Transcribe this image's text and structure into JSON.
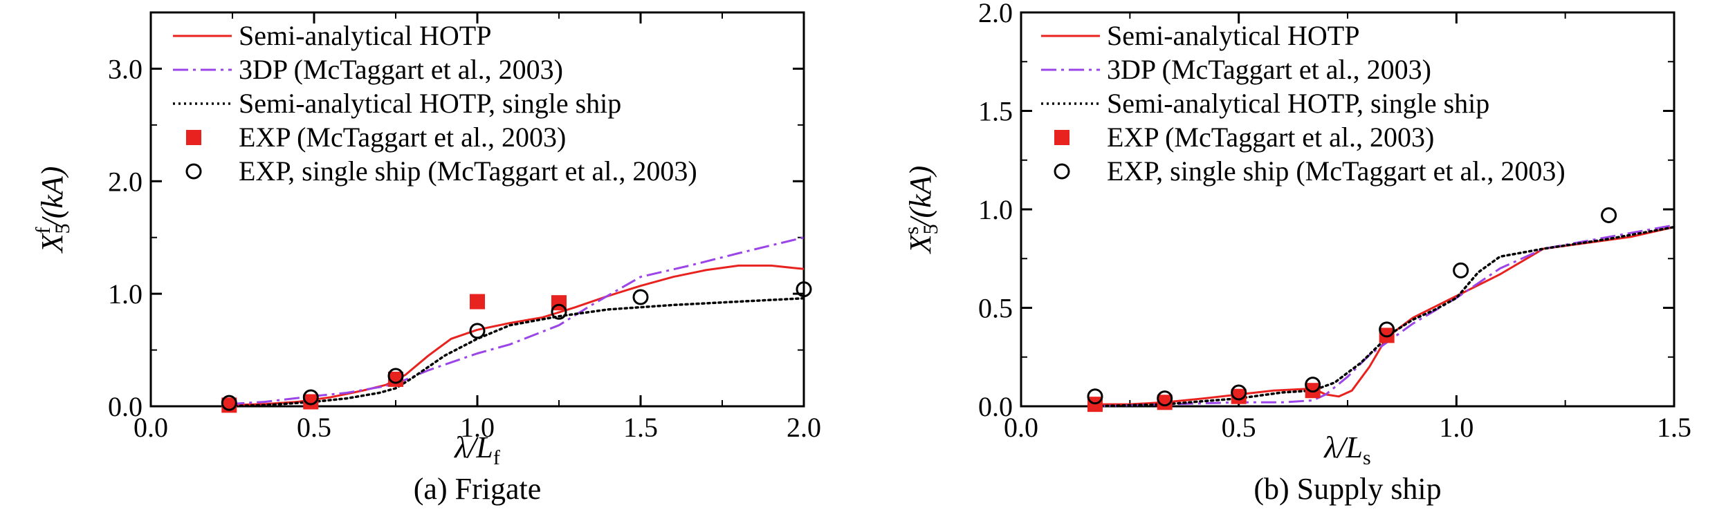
{
  "chart_data": [
    {
      "type": "line",
      "id": "frigate",
      "caption": "(a) Frigate",
      "xlabel": {
        "main": "λ/L",
        "sub": "f"
      },
      "ylabel": {
        "main": "X",
        "sub": "5",
        "sup": "f",
        "tail": "/(kA)"
      },
      "xlim": [
        0.0,
        2.0
      ],
      "ylim": [
        0.0,
        3.5
      ],
      "xticks": [
        0.0,
        0.5,
        1.0,
        1.5,
        2.0
      ],
      "xtick_labels": [
        "0.0",
        "0.5",
        "1.0",
        "1.5",
        "2.0"
      ],
      "yticks": [
        0.0,
        1.0,
        2.0,
        3.0
      ],
      "ytick_labels": [
        "0.0",
        "1.0",
        "2.0",
        "3.0"
      ],
      "legend_position": "top-left",
      "series": [
        {
          "name": "Semi-analytical HOTP",
          "style": "solid",
          "color": "#e8231f",
          "x": [
            0.24,
            0.35,
            0.45,
            0.55,
            0.65,
            0.72,
            0.78,
            0.85,
            0.92,
            1.0,
            1.1,
            1.2,
            1.3,
            1.4,
            1.5,
            1.6,
            1.7,
            1.8,
            1.9,
            2.0
          ],
          "y": [
            0.01,
            0.02,
            0.04,
            0.08,
            0.14,
            0.19,
            0.28,
            0.45,
            0.6,
            0.68,
            0.74,
            0.79,
            0.88,
            0.98,
            1.07,
            1.15,
            1.21,
            1.25,
            1.25,
            1.22
          ]
        },
        {
          "name": "3DP (McTaggart et al., 2003)",
          "style": "dashdot",
          "color": "#9b44e8",
          "x": [
            0.24,
            0.35,
            0.5,
            0.6,
            0.7,
            0.75,
            0.85,
            0.95,
            1.0,
            1.1,
            1.25,
            1.35,
            1.5,
            1.65,
            1.8,
            2.0
          ],
          "y": [
            0.02,
            0.04,
            0.09,
            0.12,
            0.17,
            0.2,
            0.32,
            0.42,
            0.47,
            0.55,
            0.72,
            0.9,
            1.15,
            1.25,
            1.36,
            1.5
          ]
        },
        {
          "name": "Semi-analytical HOTP, single ship",
          "style": "dotted",
          "color": "#000000",
          "x": [
            0.24,
            0.35,
            0.5,
            0.6,
            0.7,
            0.75,
            0.8,
            0.9,
            1.0,
            1.1,
            1.25,
            1.4,
            1.6,
            1.8,
            2.0
          ],
          "y": [
            0.0,
            0.01,
            0.04,
            0.07,
            0.12,
            0.16,
            0.25,
            0.45,
            0.6,
            0.72,
            0.8,
            0.86,
            0.9,
            0.93,
            0.96
          ]
        },
        {
          "name": "EXP (McTaggart et al., 2003)",
          "style": "marker-square",
          "color": "#e8231f",
          "x": [
            0.24,
            0.49,
            0.75,
            1.0,
            1.25
          ],
          "y": [
            0.01,
            0.04,
            0.24,
            0.93,
            0.92
          ]
        },
        {
          "name": "EXP, single ship (McTaggart et al., 2003)",
          "style": "marker-circle",
          "color": "#000000",
          "x": [
            0.24,
            0.49,
            0.75,
            1.0,
            1.25,
            1.5,
            2.0
          ],
          "y": [
            0.03,
            0.08,
            0.27,
            0.67,
            0.84,
            0.97,
            1.04
          ]
        }
      ]
    },
    {
      "type": "line",
      "id": "supply",
      "caption": "(b) Supply ship",
      "xlabel": {
        "main": "λ/L",
        "sub": "s"
      },
      "ylabel": {
        "main": "X",
        "sub": "5",
        "sup": "s",
        "tail": "/(kA)"
      },
      "xlim": [
        0.0,
        1.5
      ],
      "ylim": [
        0.0,
        2.0
      ],
      "xticks": [
        0.0,
        0.5,
        1.0,
        1.5
      ],
      "xtick_labels": [
        "0.0",
        "0.5",
        "1.0",
        "1.5"
      ],
      "yticks": [
        0.0,
        0.5,
        1.0,
        1.5,
        2.0
      ],
      "ytick_labels": [
        "0.0",
        "0.5",
        "1.0",
        "1.5",
        "2.0"
      ],
      "legend_position": "top-left",
      "series": [
        {
          "name": "Semi-analytical HOTP",
          "style": "solid",
          "color": "#e8231f",
          "x": [
            0.17,
            0.25,
            0.33,
            0.42,
            0.5,
            0.58,
            0.67,
            0.7,
            0.73,
            0.76,
            0.8,
            0.84,
            0.9,
            1.0,
            1.1,
            1.2,
            1.3,
            1.4,
            1.5
          ],
          "y": [
            0.01,
            0.01,
            0.02,
            0.04,
            0.06,
            0.08,
            0.09,
            0.06,
            0.05,
            0.08,
            0.2,
            0.35,
            0.45,
            0.56,
            0.67,
            0.8,
            0.83,
            0.86,
            0.91
          ]
        },
        {
          "name": "3DP (McTaggart et al., 2003)",
          "style": "dashdot",
          "color": "#9b44e8",
          "x": [
            0.17,
            0.33,
            0.5,
            0.6,
            0.67,
            0.7,
            0.75,
            0.8,
            0.85,
            0.9,
            1.0,
            1.1,
            1.2,
            1.35,
            1.5
          ],
          "y": [
            0.0,
            0.01,
            0.02,
            0.02,
            0.03,
            0.06,
            0.15,
            0.26,
            0.34,
            0.42,
            0.55,
            0.7,
            0.8,
            0.86,
            0.92
          ]
        },
        {
          "name": "Semi-analytical HOTP, single ship",
          "style": "dotted",
          "color": "#000000",
          "x": [
            0.17,
            0.33,
            0.5,
            0.6,
            0.67,
            0.72,
            0.78,
            0.85,
            0.9,
            0.95,
            1.0,
            1.05,
            1.1,
            1.2,
            1.35,
            1.5
          ],
          "y": [
            0.0,
            0.01,
            0.04,
            0.07,
            0.08,
            0.12,
            0.22,
            0.37,
            0.44,
            0.49,
            0.55,
            0.68,
            0.76,
            0.8,
            0.85,
            0.91
          ]
        },
        {
          "name": "EXP (McTaggart et al., 2003)",
          "style": "marker-square",
          "color": "#e8231f",
          "x": [
            0.17,
            0.33,
            0.5,
            0.67,
            0.84
          ],
          "y": [
            0.01,
            0.02,
            0.05,
            0.08,
            0.36
          ]
        },
        {
          "name": "EXP, single ship (McTaggart et al., 2003)",
          "style": "marker-circle",
          "color": "#000000",
          "x": [
            0.17,
            0.33,
            0.5,
            0.67,
            0.84,
            1.01,
            1.35
          ],
          "y": [
            0.05,
            0.04,
            0.07,
            0.11,
            0.39,
            0.69,
            0.97
          ]
        }
      ]
    }
  ]
}
